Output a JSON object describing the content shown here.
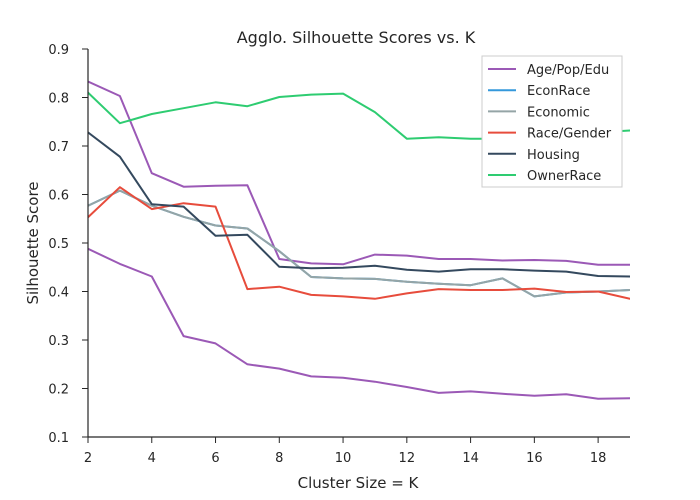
{
  "chart_data": {
    "type": "line",
    "title": "Agglo. Silhouette Scores vs. K",
    "xlabel": "Cluster Size = K",
    "ylabel": "Silhouette Score",
    "xlim": [
      2,
      19
    ],
    "ylim": [
      0.1,
      0.9
    ],
    "xticks": [
      2,
      4,
      6,
      8,
      10,
      12,
      14,
      16,
      18
    ],
    "xtick_labels": [
      "2",
      "4",
      "6",
      "8",
      "10",
      "12",
      "14",
      "16",
      "18"
    ],
    "yticks": [
      0.1,
      0.2,
      0.3,
      0.4,
      0.5,
      0.6,
      0.7,
      0.8,
      0.9
    ],
    "ytick_labels": [
      "0.1",
      "0.2",
      "0.3",
      "0.4",
      "0.5",
      "0.6",
      "0.7",
      "0.8",
      "0.9"
    ],
    "grid": false,
    "legend_position": "top-right",
    "x": [
      2,
      3,
      4,
      5,
      6,
      7,
      8,
      9,
      10,
      11,
      12,
      13,
      14,
      15,
      16,
      17,
      18,
      19
    ],
    "series": [
      {
        "name": "Age/Pop/Edu",
        "color": "#9b59b6",
        "values": [
          0.833,
          0.803,
          0.644,
          0.616,
          0.618,
          0.619,
          0.467,
          0.458,
          0.456,
          0.476,
          0.474,
          0.467,
          0.467,
          0.464,
          0.465,
          0.463,
          0.455,
          0.455
        ]
      },
      {
        "name": "Age/Pop/Edu",
        "color": "#9b59b6",
        "legend": false,
        "values": [
          0.488,
          0.457,
          0.431,
          0.308,
          0.293,
          0.25,
          0.241,
          0.225,
          0.222,
          0.214,
          0.203,
          0.191,
          0.194,
          0.189,
          0.185,
          0.188,
          0.179,
          0.18
        ]
      },
      {
        "name": "EconRace",
        "color": "#3498db",
        "values": [
          0.577,
          0.608,
          0.577,
          0.554,
          0.536,
          0.53,
          0.483,
          0.43,
          0.427,
          0.426,
          0.42,
          0.416,
          0.413,
          0.427,
          0.39,
          0.398,
          0.4,
          0.403
        ]
      },
      {
        "name": "Economic",
        "color": "#95a5a6",
        "values": [
          0.577,
          0.608,
          0.577,
          0.554,
          0.536,
          0.53,
          0.483,
          0.43,
          0.427,
          0.426,
          0.42,
          0.416,
          0.413,
          0.427,
          0.39,
          0.398,
          0.4,
          0.403
        ]
      },
      {
        "name": "Race/Gender",
        "color": "#e74c3c",
        "values": [
          0.553,
          0.615,
          0.57,
          0.582,
          0.575,
          0.405,
          0.41,
          0.393,
          0.39,
          0.385,
          0.396,
          0.405,
          0.403,
          0.403,
          0.406,
          0.399,
          0.4,
          0.385
        ]
      },
      {
        "name": "Housing",
        "color": "#34495e",
        "values": [
          0.728,
          0.678,
          0.58,
          0.575,
          0.515,
          0.517,
          0.451,
          0.448,
          0.449,
          0.453,
          0.445,
          0.441,
          0.446,
          0.446,
          0.443,
          0.441,
          0.432,
          0.431
        ]
      },
      {
        "name": "OwnerRace",
        "color": "#2ecc71",
        "values": [
          0.81,
          0.747,
          0.766,
          0.778,
          0.79,
          0.782,
          0.801,
          0.806,
          0.808,
          0.77,
          0.715,
          0.718,
          0.715,
          0.715,
          0.715,
          0.728,
          0.728,
          0.732
        ]
      }
    ]
  }
}
